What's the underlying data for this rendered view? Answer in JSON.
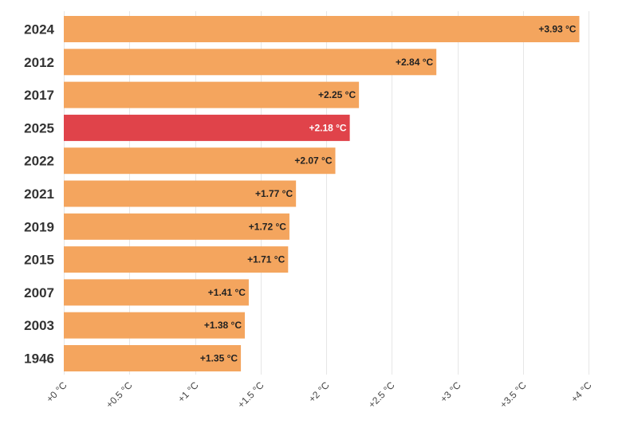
{
  "chart_data": {
    "type": "bar",
    "orientation": "horizontal",
    "title": "",
    "xlabel": "",
    "ylabel": "",
    "categories": [
      "2024",
      "2012",
      "2017",
      "2025",
      "2022",
      "2021",
      "2019",
      "2015",
      "2007",
      "2003",
      "1946"
    ],
    "values": [
      3.93,
      2.84,
      2.25,
      2.18,
      2.07,
      1.77,
      1.72,
      1.71,
      1.41,
      1.38,
      1.35
    ],
    "value_labels": [
      "+3.93 °C",
      "+2.84 °C",
      "+2.25 °C",
      "+2.18 °C",
      "+2.07 °C",
      "+1.77 °C",
      "+1.72 °C",
      "+1.71 °C",
      "+1.41 °C",
      "+1.38 °C",
      "+1.35 °C"
    ],
    "highlight": "2025",
    "xlim": [
      0,
      4
    ],
    "x_ticks": [
      0,
      0.5,
      1,
      1.5,
      2,
      2.5,
      3,
      3.5,
      4
    ],
    "x_tick_labels": [
      "+0 °C",
      "+0.5 °C",
      "+1 °C",
      "+1.5 °C",
      "+2 °C",
      "+2.5 °C",
      "+3 °C",
      "+3.5 °C",
      "+4 °C"
    ],
    "grid": true
  },
  "colors": {
    "bar": "#f4a55e",
    "highlight": "#e0434a",
    "label_on_bar": "#222222",
    "label_on_highlight": "#ffffff"
  }
}
